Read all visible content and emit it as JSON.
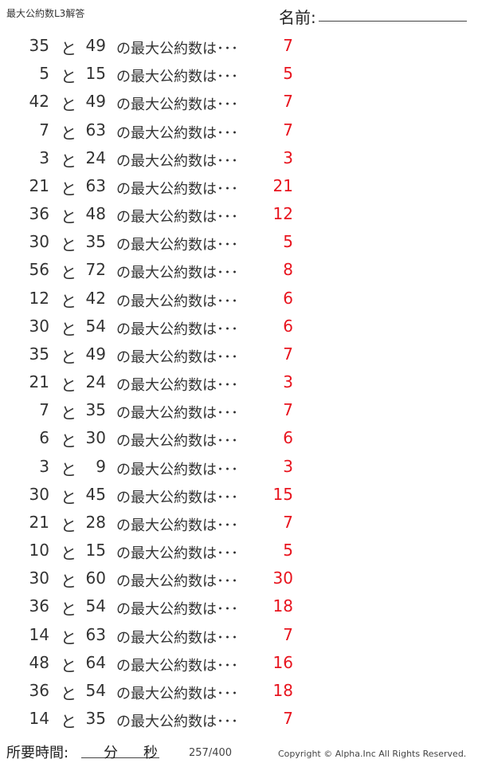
{
  "header": {
    "title": "最大公約数L3解答",
    "name_label": "名前:"
  },
  "phrase_to": "と",
  "phrase_q": "の最大公約数は･･･",
  "problems": [
    {
      "a": "35",
      "b": "49",
      "answer": "7"
    },
    {
      "a": "5",
      "b": "15",
      "answer": "5"
    },
    {
      "a": "42",
      "b": "49",
      "answer": "7"
    },
    {
      "a": "7",
      "b": "63",
      "answer": "7"
    },
    {
      "a": "3",
      "b": "24",
      "answer": "3"
    },
    {
      "a": "21",
      "b": "63",
      "answer": "21"
    },
    {
      "a": "36",
      "b": "48",
      "answer": "12"
    },
    {
      "a": "30",
      "b": "35",
      "answer": "5"
    },
    {
      "a": "56",
      "b": "72",
      "answer": "8"
    },
    {
      "a": "12",
      "b": "42",
      "answer": "6"
    },
    {
      "a": "30",
      "b": "54",
      "answer": "6"
    },
    {
      "a": "35",
      "b": "49",
      "answer": "7"
    },
    {
      "a": "21",
      "b": "24",
      "answer": "3"
    },
    {
      "a": "7",
      "b": "35",
      "answer": "7"
    },
    {
      "a": "6",
      "b": "30",
      "answer": "6"
    },
    {
      "a": "3",
      "b": "9",
      "answer": "3"
    },
    {
      "a": "30",
      "b": "45",
      "answer": "15"
    },
    {
      "a": "21",
      "b": "28",
      "answer": "7"
    },
    {
      "a": "10",
      "b": "15",
      "answer": "5"
    },
    {
      "a": "30",
      "b": "60",
      "answer": "30"
    },
    {
      "a": "36",
      "b": "54",
      "answer": "18"
    },
    {
      "a": "14",
      "b": "63",
      "answer": "7"
    },
    {
      "a": "48",
      "b": "64",
      "answer": "16"
    },
    {
      "a": "36",
      "b": "54",
      "answer": "18"
    },
    {
      "a": "14",
      "b": "35",
      "answer": "7"
    }
  ],
  "footer": {
    "time_label": "所要時間:",
    "minutes": "分",
    "seconds": "秒",
    "page": "257/400",
    "copyright": "Copyright ©  Alpha.Inc All Rights Reserved."
  },
  "colors": {
    "answer": "#e8141e"
  }
}
